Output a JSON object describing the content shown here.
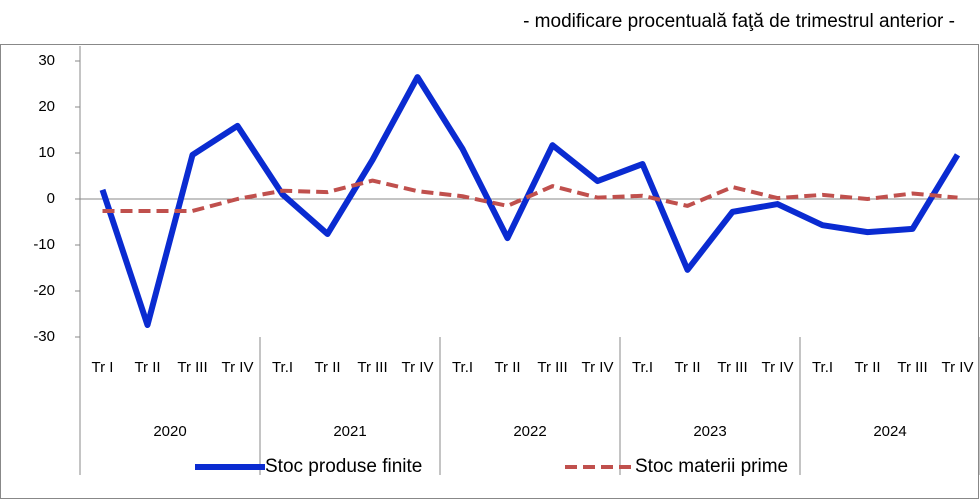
{
  "chart_data": {
    "type": "line",
    "subtitle": "- modificare procentuală faţă de trimestrul anterior  -",
    "categories": [
      "Tr I",
      "Tr II",
      "Tr III",
      "Tr IV",
      "Tr.I",
      "Tr II",
      "Tr III",
      "Tr IV",
      "Tr.I",
      "Tr II",
      "Tr III",
      "Tr IV",
      "Tr.I",
      "Tr II",
      "Tr III",
      "Tr IV",
      "Tr.I",
      "Tr II",
      "Tr III",
      "Tr IV"
    ],
    "years": [
      "2020",
      "2021",
      "2022",
      "2023",
      "2024"
    ],
    "series": [
      {
        "name": "Stoc produse finite",
        "color": "#0a2bd1",
        "dash": "none",
        "values": [
          2,
          -27.4,
          9.6,
          15.9,
          1,
          -7.6,
          8.5,
          26.5,
          10.9,
          -8.5,
          11.7,
          3.9,
          7.6,
          -15.4,
          -2.8,
          -1.1,
          -5.7,
          -7.2,
          -6.5,
          9.6
        ]
      },
      {
        "name": "Stoc materii prime",
        "color": "#c0504d",
        "dash": "12 6",
        "values": [
          -2.6,
          -2.6,
          -2.6,
          0,
          1.8,
          1.5,
          4,
          1.7,
          0.6,
          -1.5,
          2.8,
          0.3,
          0.7,
          -1.5,
          2.6,
          0.2,
          0.9,
          0,
          1.2,
          0.3
        ]
      }
    ],
    "ylim": [
      -30,
      30
    ],
    "yticks": [
      -30,
      -20,
      -10,
      0,
      10,
      20,
      30
    ],
    "grid": false
  }
}
